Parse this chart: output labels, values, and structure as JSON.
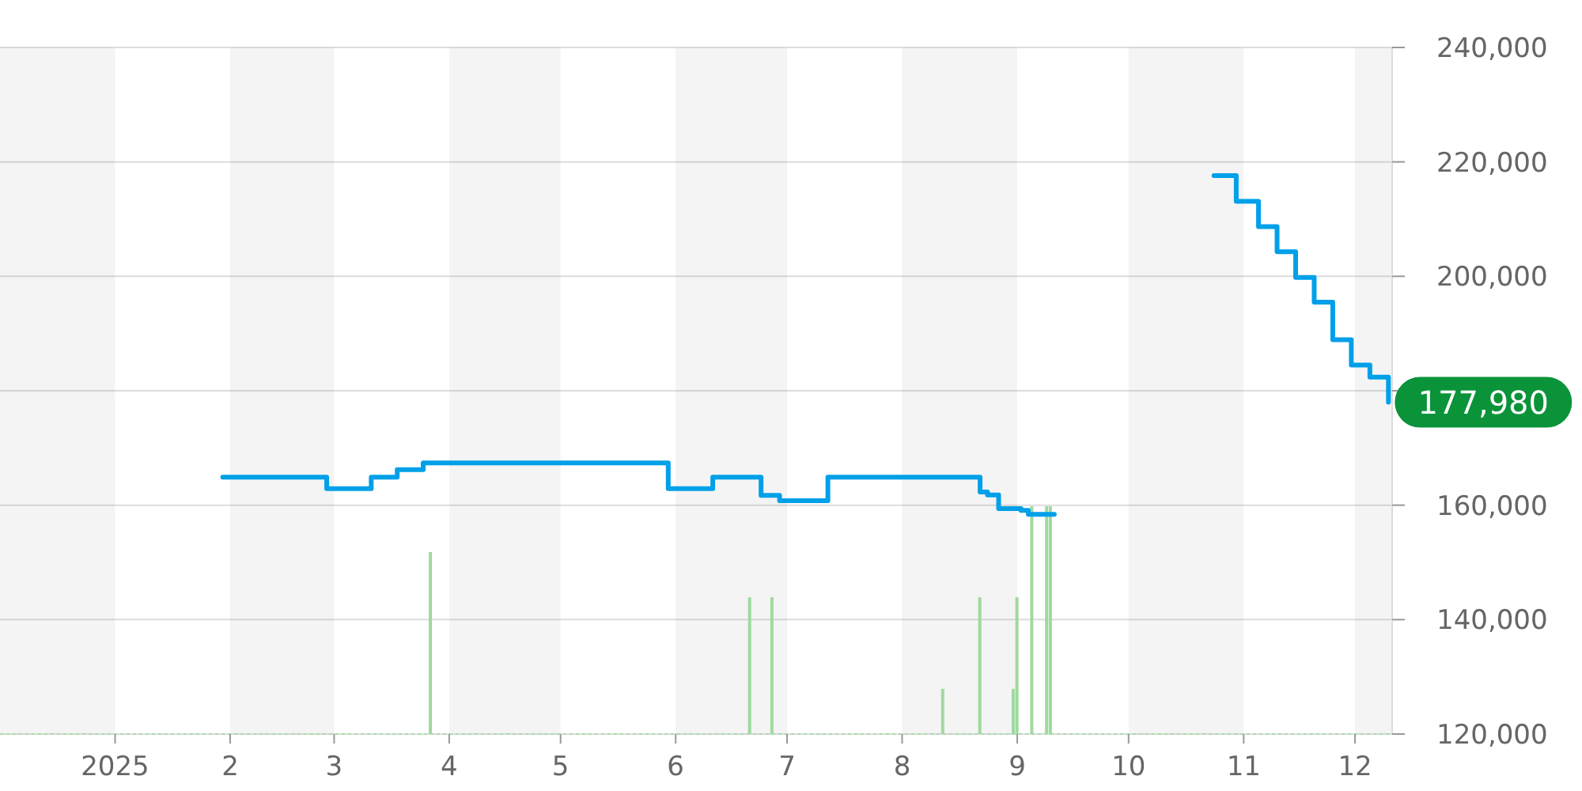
{
  "chart_data": {
    "type": "step",
    "series": [
      {
        "color": "#00a0e9",
        "x": [
          "2025-01-30",
          "2025-02-27",
          "2025-03-11",
          "2025-03-18",
          "2025-03-25",
          "2025-05-30",
          "2025-06-11",
          "2025-06-24",
          "2025-06-29",
          "2025-07-12",
          "2025-08-22",
          "2025-08-24",
          "2025-08-27",
          "2025-09-02",
          "2025-09-04",
          "2025-09-11",
          "2025-10-01",
          "2025-10-24",
          "2025-10-30",
          "2025-11-05",
          "2025-11-10",
          "2025-11-15",
          "2025-11-20",
          "2025-11-25",
          "2025-11-30",
          "2025-12-05",
          "2025-12-10"
        ],
        "values": [
          164900,
          162900,
          164900,
          166200,
          167400,
          162900,
          164900,
          161700,
          160800,
          164900,
          162300,
          161800,
          159400,
          159100,
          158400,
          158400,
          null,
          217600,
          213100,
          208700,
          204300,
          199800,
          195500,
          188900,
          184500,
          182400,
          177980
        ]
      },
      {
        "type": "bar",
        "color": "#9fd99f",
        "x": [
          "2025-03-27",
          "2025-06-21",
          "2025-06-27",
          "2025-08-12",
          "2025-08-22",
          "2025-08-31",
          "2025-09-01",
          "2025-09-05",
          "2025-09-09",
          "2025-09-10"
        ],
        "values": [
          151800,
          143900,
          143900,
          127900,
          143900,
          127900,
          143900,
          159800,
          159800,
          159800
        ]
      }
    ],
    "xlim": [
      "2024-12-01",
      "2025-12-11"
    ],
    "xticks": [
      {
        "value": "2025-01-01",
        "label": "2025"
      },
      {
        "value": "2025-02-01",
        "label": "2"
      },
      {
        "value": "2025-03-01",
        "label": "3"
      },
      {
        "value": "2025-04-01",
        "label": "4"
      },
      {
        "value": "2025-05-01",
        "label": "5"
      },
      {
        "value": "2025-06-01",
        "label": "6"
      },
      {
        "value": "2025-07-01",
        "label": "7"
      },
      {
        "value": "2025-08-01",
        "label": "8"
      },
      {
        "value": "2025-09-01",
        "label": "9"
      },
      {
        "value": "2025-10-01",
        "label": "10"
      },
      {
        "value": "2025-11-01",
        "label": "11"
      },
      {
        "value": "2025-12-01",
        "label": "12"
      }
    ],
    "ylim": [
      120000,
      240000
    ],
    "yticks": [
      {
        "value": 120000,
        "label": "120,000"
      },
      {
        "value": 140000,
        "label": "140,000"
      },
      {
        "value": 160000,
        "label": "160,000"
      },
      {
        "value": 180000,
        "label": null
      },
      {
        "value": 200000,
        "label": "200,000"
      },
      {
        "value": 220000,
        "label": "220,000"
      },
      {
        "value": 240000,
        "label": "240,000"
      }
    ],
    "grid": "y",
    "bands": [
      {
        "axis": "x",
        "from": "2024-12-01",
        "to": "2025-01-01",
        "color": "#f4f4f4"
      },
      {
        "axis": "x",
        "from": "2025-02-01",
        "to": "2025-03-01",
        "color": "#f4f4f4"
      },
      {
        "axis": "x",
        "from": "2025-04-01",
        "to": "2025-05-01",
        "color": "#f4f4f4"
      },
      {
        "axis": "x",
        "from": "2025-06-01",
        "to": "2025-07-01",
        "color": "#f4f4f4"
      },
      {
        "axis": "x",
        "from": "2025-08-01",
        "to": "2025-09-01",
        "color": "#f4f4f4"
      },
      {
        "axis": "x",
        "from": "2025-10-01",
        "to": "2025-11-01",
        "color": "#f4f4f4"
      },
      {
        "axis": "x",
        "from": "2025-12-01",
        "to": "2025-12-11",
        "color": "#f4f4f4"
      }
    ],
    "annotations": [
      {
        "text": "177,980",
        "x": "2025-12-10",
        "y": 177980
      }
    ]
  }
}
